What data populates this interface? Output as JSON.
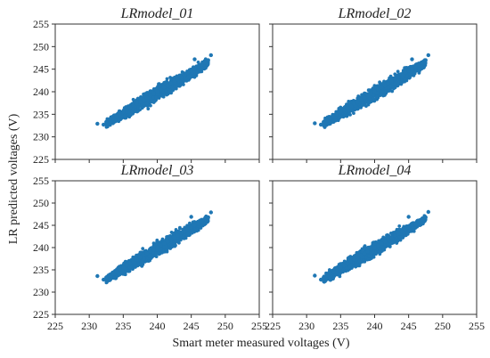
{
  "figure": {
    "xlabel": "Smart meter measured voltages (V)",
    "ylabel": "LR predicted voltages (V)",
    "marker_color": "#1f77b4",
    "background": "#ffffff"
  },
  "chart_data": [
    {
      "type": "scatter",
      "title": "LRmodel_01",
      "xlim": [
        225,
        255
      ],
      "ylim": [
        225,
        255
      ],
      "xticks": [
        225,
        230,
        235,
        240,
        245,
        250,
        255
      ],
      "yticks": [
        225,
        230,
        235,
        240,
        245,
        250,
        255
      ],
      "grid": false,
      "points": [
        [
          231.2,
          232.9
        ],
        [
          232.1,
          232.7
        ],
        [
          232.5,
          233.3
        ],
        [
          233.0,
          233.6
        ],
        [
          233.5,
          234.1
        ],
        [
          234.0,
          234.6
        ],
        [
          234.5,
          235.0
        ],
        [
          235.0,
          235.5
        ],
        [
          235.5,
          235.9
        ],
        [
          236.0,
          236.4
        ],
        [
          236.5,
          236.9
        ],
        [
          237.0,
          237.3
        ],
        [
          237.5,
          237.8
        ],
        [
          238.0,
          238.2
        ],
        [
          238.5,
          238.7
        ],
        [
          239.0,
          239.2
        ],
        [
          239.5,
          239.6
        ],
        [
          240.0,
          240.1
        ],
        [
          240.5,
          240.5
        ],
        [
          241.0,
          241.0
        ],
        [
          241.5,
          241.4
        ],
        [
          242.0,
          241.9
        ],
        [
          242.5,
          242.4
        ],
        [
          243.0,
          242.8
        ],
        [
          243.5,
          243.3
        ],
        [
          244.0,
          243.7
        ],
        [
          244.5,
          244.2
        ],
        [
          245.0,
          244.7
        ],
        [
          245.5,
          245.1
        ],
        [
          246.0,
          245.6
        ],
        [
          246.5,
          246.0
        ],
        [
          247.0,
          246.5
        ],
        [
          247.5,
          247.0
        ],
        [
          247.9,
          248.1
        ],
        [
          245.5,
          247.2
        ]
      ]
    },
    {
      "type": "scatter",
      "title": "LRmodel_02",
      "xlim": [
        225,
        255
      ],
      "ylim": [
        225,
        255
      ],
      "xticks": [
        225,
        230,
        235,
        240,
        245,
        250,
        255
      ],
      "yticks": [
        225,
        230,
        235,
        240,
        245,
        250,
        255
      ],
      "grid": false,
      "points": [
        [
          231.2,
          233.0
        ],
        [
          232.1,
          232.7
        ],
        [
          232.5,
          233.3
        ],
        [
          233.0,
          233.6
        ],
        [
          233.5,
          234.1
        ],
        [
          234.0,
          234.6
        ],
        [
          234.5,
          235.0
        ],
        [
          235.0,
          235.5
        ],
        [
          235.5,
          235.9
        ],
        [
          236.0,
          236.4
        ],
        [
          236.5,
          236.9
        ],
        [
          237.0,
          237.3
        ],
        [
          237.5,
          237.8
        ],
        [
          238.0,
          238.2
        ],
        [
          238.5,
          238.7
        ],
        [
          239.0,
          239.2
        ],
        [
          239.5,
          239.6
        ],
        [
          240.0,
          240.1
        ],
        [
          240.5,
          240.5
        ],
        [
          241.0,
          241.0
        ],
        [
          241.5,
          241.4
        ],
        [
          242.0,
          241.9
        ],
        [
          242.5,
          242.4
        ],
        [
          243.0,
          242.8
        ],
        [
          243.5,
          243.3
        ],
        [
          244.0,
          243.7
        ],
        [
          244.5,
          244.2
        ],
        [
          245.0,
          244.7
        ],
        [
          245.5,
          245.1
        ],
        [
          246.0,
          245.6
        ],
        [
          246.5,
          246.0
        ],
        [
          247.0,
          246.5
        ],
        [
          247.5,
          247.0
        ],
        [
          247.9,
          248.1
        ],
        [
          245.5,
          247.2
        ]
      ]
    },
    {
      "type": "scatter",
      "title": "LRmodel_03",
      "xlim": [
        225,
        255
      ],
      "ylim": [
        225,
        255
      ],
      "xticks": [
        225,
        230,
        235,
        240,
        245,
        250,
        255
      ],
      "yticks": [
        225,
        230,
        235,
        240,
        245,
        250,
        255
      ],
      "grid": false,
      "points": [
        [
          231.2,
          233.6
        ],
        [
          232.1,
          232.8
        ],
        [
          232.5,
          233.3
        ],
        [
          233.0,
          233.7
        ],
        [
          233.5,
          234.2
        ],
        [
          234.0,
          234.6
        ],
        [
          234.5,
          235.1
        ],
        [
          235.0,
          235.5
        ],
        [
          235.5,
          236.0
        ],
        [
          236.0,
          236.4
        ],
        [
          236.5,
          236.9
        ],
        [
          237.0,
          237.3
        ],
        [
          237.5,
          237.8
        ],
        [
          238.0,
          238.2
        ],
        [
          238.5,
          238.7
        ],
        [
          239.0,
          239.1
        ],
        [
          239.5,
          239.6
        ],
        [
          240.0,
          240.0
        ],
        [
          240.5,
          240.5
        ],
        [
          241.0,
          240.9
        ],
        [
          241.5,
          241.4
        ],
        [
          242.0,
          241.8
        ],
        [
          242.5,
          242.3
        ],
        [
          243.0,
          242.7
        ],
        [
          243.5,
          243.2
        ],
        [
          244.0,
          243.6
        ],
        [
          244.5,
          244.1
        ],
        [
          245.0,
          244.5
        ],
        [
          245.5,
          245.0
        ],
        [
          246.0,
          245.4
        ],
        [
          246.5,
          245.9
        ],
        [
          247.0,
          246.3
        ],
        [
          247.5,
          246.8
        ],
        [
          247.9,
          247.9
        ],
        [
          245.0,
          246.9
        ]
      ]
    },
    {
      "type": "scatter",
      "title": "LRmodel_04",
      "xlim": [
        225,
        255
      ],
      "ylim": [
        225,
        255
      ],
      "xticks": [
        225,
        230,
        235,
        240,
        245,
        250,
        255
      ],
      "yticks": [
        225,
        230,
        235,
        240,
        245,
        250,
        255
      ],
      "grid": false,
      "points": [
        [
          231.2,
          233.7
        ],
        [
          232.1,
          232.8
        ],
        [
          232.5,
          233.3
        ],
        [
          233.0,
          233.7
        ],
        [
          233.5,
          234.2
        ],
        [
          234.0,
          234.6
        ],
        [
          234.5,
          235.1
        ],
        [
          235.0,
          235.5
        ],
        [
          235.5,
          236.0
        ],
        [
          236.0,
          236.4
        ],
        [
          236.5,
          236.9
        ],
        [
          237.0,
          237.3
        ],
        [
          237.5,
          237.8
        ],
        [
          238.0,
          238.2
        ],
        [
          238.5,
          238.7
        ],
        [
          239.0,
          239.1
        ],
        [
          239.5,
          239.6
        ],
        [
          240.0,
          240.0
        ],
        [
          240.5,
          240.5
        ],
        [
          241.0,
          240.9
        ],
        [
          241.5,
          241.4
        ],
        [
          242.0,
          241.8
        ],
        [
          242.5,
          242.3
        ],
        [
          243.0,
          242.7
        ],
        [
          243.5,
          243.2
        ],
        [
          244.0,
          243.6
        ],
        [
          244.5,
          244.1
        ],
        [
          245.0,
          244.5
        ],
        [
          245.5,
          245.0
        ],
        [
          246.0,
          245.4
        ],
        [
          246.5,
          245.9
        ],
        [
          247.0,
          246.3
        ],
        [
          247.5,
          246.8
        ],
        [
          247.9,
          248.0
        ],
        [
          245.0,
          246.9
        ]
      ]
    }
  ]
}
